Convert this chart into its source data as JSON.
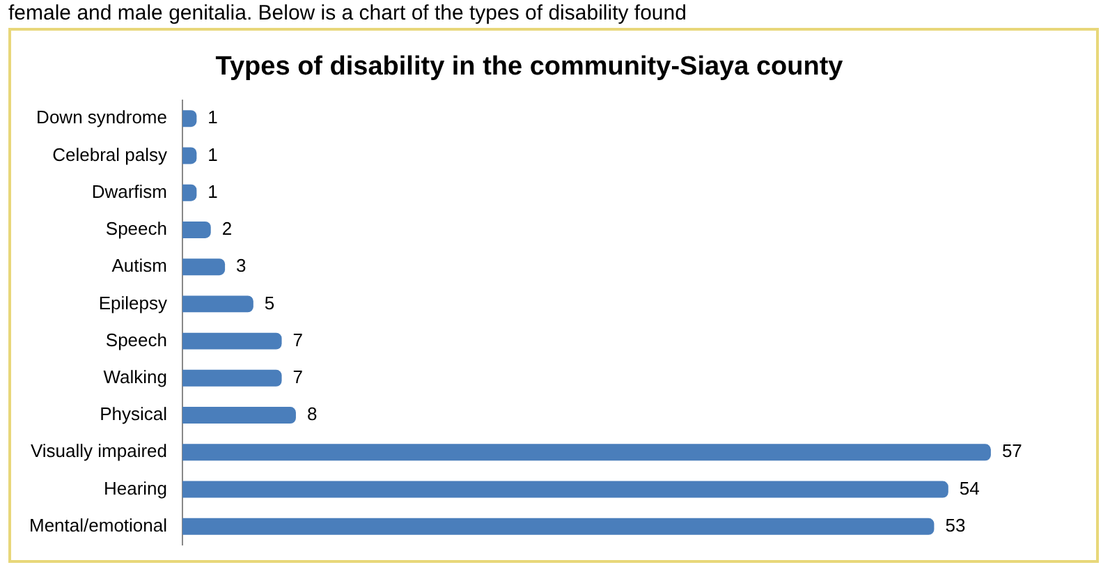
{
  "chart_data": {
    "type": "bar",
    "orientation": "horizontal",
    "title": "Types of disability in the community-Siaya county",
    "annotations": [
      "female and male genitalia. Below is a chart of the types of disability found"
    ],
    "categories": [
      "Down syndrome",
      "Celebral palsy",
      "Dwarfism",
      "Speech",
      "Autism",
      "Epilepsy",
      "Speech",
      "Walking",
      "Physical",
      "Visually impaired",
      "Hearing",
      "Mental/emotional"
    ],
    "values": [
      1,
      1,
      1,
      2,
      3,
      5,
      7,
      7,
      8,
      57,
      54,
      53
    ],
    "color": "#4a7ebb",
    "data_labels": true,
    "grid": false,
    "legend": false
  }
}
